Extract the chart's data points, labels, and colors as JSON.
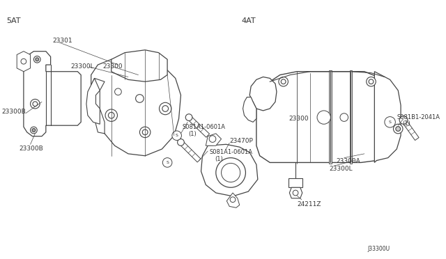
{
  "background_color": "#ffffff",
  "fig_width": 6.4,
  "fig_height": 3.72,
  "dpi": 100,
  "line_color": "#444444",
  "text_color": "#333333",
  "label_fontsize": 6.0,
  "title_5at": "5AT",
  "title_4at": "4AT",
  "diagram_number": "J33300U",
  "border_color": "#888888"
}
